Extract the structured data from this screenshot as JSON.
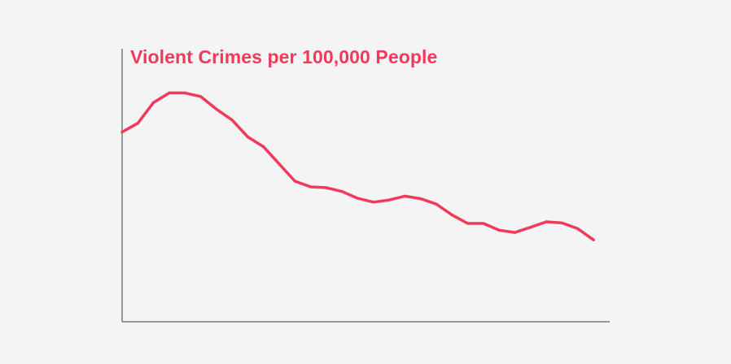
{
  "chart_data": {
    "type": "line",
    "title": "Violent Crimes per 100,000 People",
    "xlabel": "",
    "ylabel": "",
    "x": [
      1,
      2,
      3,
      4,
      5,
      6,
      7,
      8,
      9,
      10,
      11,
      12,
      13,
      14,
      15,
      16,
      17,
      18,
      19,
      20,
      21,
      22,
      23,
      24,
      25,
      26,
      27,
      28,
      29,
      30,
      31
    ],
    "ylim": [
      0,
      1000
    ],
    "series": [
      {
        "values": [
          695,
          727,
          803,
          838,
          838,
          825,
          779,
          739,
          677,
          641,
          578,
          515,
          494,
          491,
          477,
          452,
          438,
          446,
          460,
          451,
          431,
          391,
          360,
          360,
          335,
          327,
          346,
          366,
          362,
          341,
          300
        ]
      }
    ],
    "grid": false,
    "legend": "none"
  },
  "colors": {
    "accent": "#f03a5a",
    "axis": "#7a7a7a",
    "background": "#f4f4f4"
  }
}
